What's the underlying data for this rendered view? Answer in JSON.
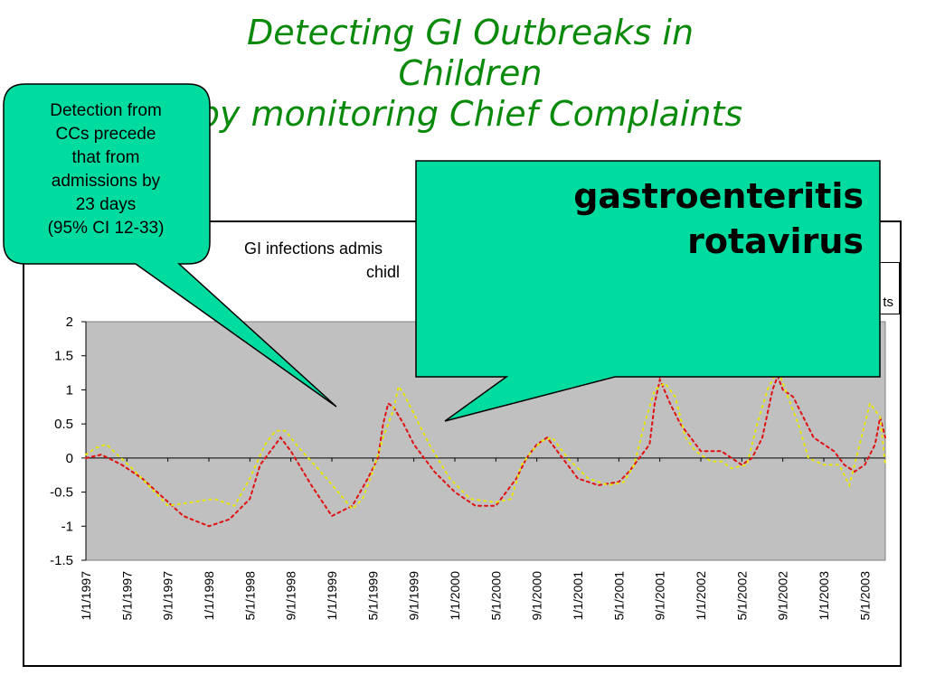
{
  "slide": {
    "title_lines": [
      "Detecting GI Outbreaks in",
      "Children",
      "by monitoring Chief Complaints"
    ]
  },
  "callouts": {
    "left_lines": [
      "Detection from",
      "CCs precede",
      "that from",
      "admissions by",
      "23 days",
      "(95% CI 12-33)"
    ],
    "overlay_lines": [
      "gastroenteritis",
      "rotavirus"
    ]
  },
  "colors": {
    "title": "#0a8a0a",
    "callout_fill": "#00dba0",
    "plot_bg": "#c0c0c0",
    "series_red": "#e01010",
    "series_yellow": "#e8e800"
  },
  "chart_data": {
    "type": "line",
    "title_lines": [
      "GI infections admis",
      "chidl"
    ],
    "legend_fragment": "ts",
    "ylim": [
      -1.5,
      2
    ],
    "y_ticks": [
      "2",
      "1.5",
      "1",
      "0.5",
      "0",
      "-0.5",
      "-1",
      "-1.5"
    ],
    "grid": false,
    "x_tick_labels": [
      "1/1/1997",
      "5/1/1997",
      "9/1/1997",
      "1/1/1998",
      "5/1/1998",
      "9/1/1998",
      "1/1/1999",
      "5/1/1999",
      "9/1/1999",
      "1/1/2000",
      "5/1/2000",
      "9/1/2000",
      "1/1/2001",
      "5/1/2001",
      "9/1/2001",
      "1/1/2002",
      "5/1/2002",
      "9/1/2002",
      "1/1/2003",
      "5/1/2003"
    ],
    "x_range_months": [
      0,
      78
    ],
    "series": [
      {
        "color": "red",
        "points": [
          [
            0.0,
            0.0
          ],
          [
            1.5,
            0.05
          ],
          [
            3.5,
            -0.1
          ],
          [
            5.5,
            -0.3
          ],
          [
            9.5,
            -0.85
          ],
          [
            12,
            -1.0
          ],
          [
            14,
            -0.9
          ],
          [
            16,
            -0.6
          ],
          [
            17,
            -0.1
          ],
          [
            17.5,
            0.0
          ],
          [
            19,
            0.3
          ],
          [
            20,
            0.1
          ],
          [
            22,
            -0.4
          ],
          [
            24,
            -0.85
          ],
          [
            26,
            -0.7
          ],
          [
            27.5,
            -0.3
          ],
          [
            28.5,
            0.0
          ],
          [
            29,
            0.5
          ],
          [
            29.5,
            0.8
          ],
          [
            30,
            0.75
          ],
          [
            31,
            0.5
          ],
          [
            32,
            0.2
          ],
          [
            34,
            -0.2
          ],
          [
            36,
            -0.5
          ],
          [
            38,
            -0.7
          ],
          [
            40,
            -0.7
          ],
          [
            41,
            -0.5
          ],
          [
            42,
            -0.3
          ],
          [
            43,
            0.0
          ],
          [
            44,
            0.2
          ],
          [
            45,
            0.3
          ],
          [
            46,
            0.1
          ],
          [
            48,
            -0.3
          ],
          [
            50,
            -0.4
          ],
          [
            52,
            -0.35
          ],
          [
            53,
            -0.2
          ],
          [
            54,
            0.0
          ],
          [
            55,
            0.2
          ],
          [
            55.5,
            0.8
          ],
          [
            56,
            1.15
          ],
          [
            57,
            0.8
          ],
          [
            58,
            0.5
          ],
          [
            59,
            0.3
          ],
          [
            60,
            0.1
          ],
          [
            62,
            0.1
          ],
          [
            64,
            -0.1
          ],
          [
            65,
            0.0
          ],
          [
            66,
            0.3
          ],
          [
            67,
            1.0
          ],
          [
            67.5,
            1.2
          ],
          [
            68,
            1.0
          ],
          [
            69,
            0.9
          ],
          [
            70,
            0.6
          ],
          [
            71,
            0.3
          ],
          [
            73,
            0.1
          ],
          [
            74,
            -0.1
          ],
          [
            75,
            -0.2
          ],
          [
            76,
            -0.1
          ],
          [
            77,
            0.2
          ],
          [
            77.5,
            0.6
          ],
          [
            78,
            0.3
          ]
        ]
      },
      {
        "color": "yellow",
        "points": [
          [
            0.0,
            0.05
          ],
          [
            1.0,
            0.15
          ],
          [
            2.0,
            0.2
          ],
          [
            4.5,
            -0.15
          ],
          [
            8.0,
            -0.7
          ],
          [
            12.5,
            -0.6
          ],
          [
            14.5,
            -0.7
          ],
          [
            16,
            -0.3
          ],
          [
            17.5,
            0.2
          ],
          [
            18.5,
            0.4
          ],
          [
            19.5,
            0.4
          ],
          [
            20.5,
            0.2
          ],
          [
            23.5,
            -0.3
          ],
          [
            26,
            -0.75
          ],
          [
            27,
            -0.6
          ],
          [
            28,
            -0.2
          ],
          [
            29,
            0.3
          ],
          [
            30,
            0.7
          ],
          [
            30.5,
            1.05
          ],
          [
            31,
            0.95
          ],
          [
            31.5,
            0.8
          ],
          [
            32.5,
            0.5
          ],
          [
            33.5,
            0.2
          ],
          [
            35.5,
            -0.3
          ],
          [
            37.5,
            -0.6
          ],
          [
            40,
            -0.65
          ],
          [
            41.5,
            -0.6
          ],
          [
            42.5,
            -0.1
          ],
          [
            43.5,
            0.1
          ],
          [
            44.5,
            0.25
          ],
          [
            45.5,
            0.3
          ],
          [
            47,
            0.0
          ],
          [
            49,
            -0.3
          ],
          [
            51,
            -0.4
          ],
          [
            52.5,
            -0.35
          ],
          [
            53.5,
            -0.1
          ],
          [
            54.5,
            0.5
          ],
          [
            55.5,
            1.0
          ],
          [
            56.5,
            1.1
          ],
          [
            57.5,
            0.9
          ],
          [
            58.5,
            0.3
          ],
          [
            59.5,
            0.1
          ],
          [
            61,
            -0.05
          ],
          [
            62,
            -0.05
          ],
          [
            63,
            -0.15
          ],
          [
            64.5,
            -0.1
          ],
          [
            65.5,
            0.5
          ],
          [
            66.5,
            1.0
          ],
          [
            67.5,
            1.3
          ],
          [
            68.5,
            0.9
          ],
          [
            69.5,
            0.5
          ],
          [
            70.5,
            0.0
          ],
          [
            72,
            -0.1
          ],
          [
            73.5,
            -0.1
          ],
          [
            74.5,
            -0.4
          ],
          [
            75.5,
            0.2
          ],
          [
            76.5,
            0.8
          ],
          [
            77.5,
            0.6
          ],
          [
            78,
            -0.1
          ]
        ]
      }
    ]
  }
}
